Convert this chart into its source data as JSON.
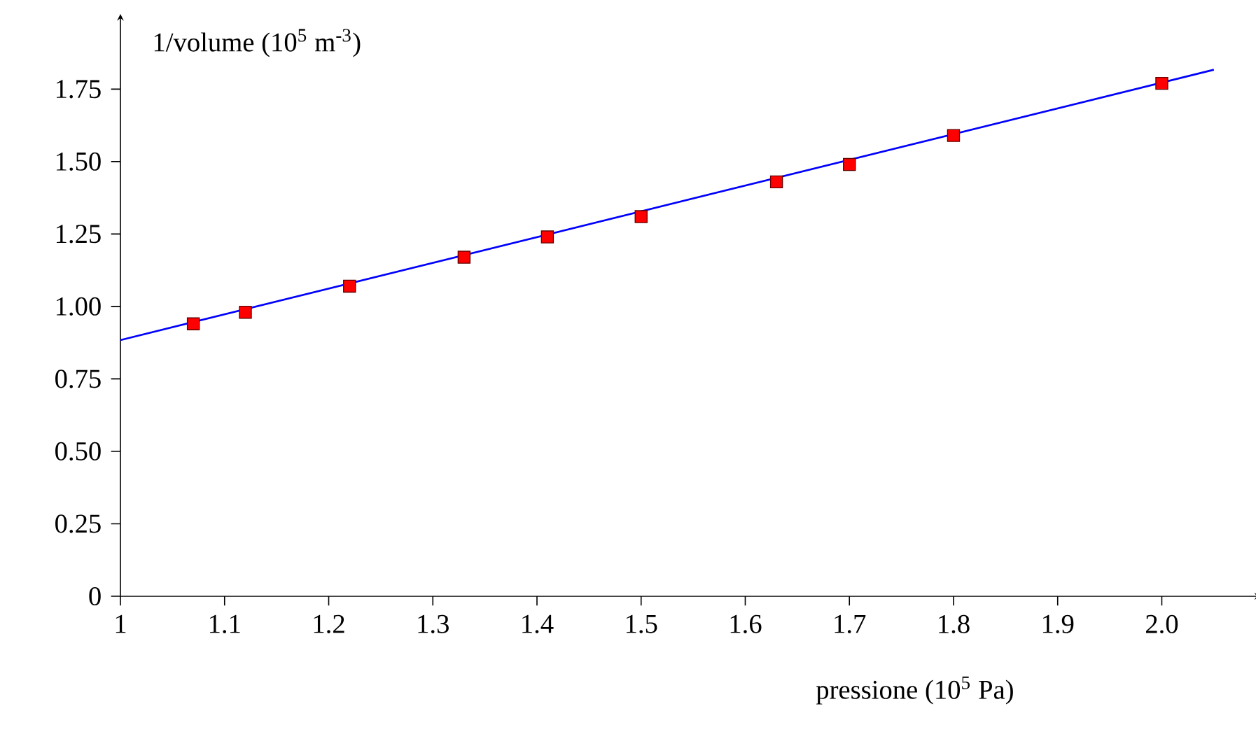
{
  "chart_data": {
    "type": "scatter",
    "xlabel": "pressione (10$^{5}$ Pa)",
    "ylabel": "1/volume (10$^{5}$ m$^{-3}$)",
    "xlim": [
      1,
      2.09
    ],
    "ylim": [
      0,
      1.99
    ],
    "xticks": [
      1,
      1.1,
      1.2,
      1.3,
      1.4,
      1.5,
      1.6,
      1.7,
      1.8,
      1.9,
      {
        "value": 2,
        "label": "2.0"
      }
    ],
    "yticks": [
      0,
      0.25,
      {
        "value": 0.5,
        "label": "0.50"
      },
      0.75,
      {
        "value": 1,
        "label": "1.00"
      },
      1.25,
      {
        "value": 1.5,
        "label": "1.50"
      },
      1.75
    ],
    "series": [
      {
        "color": "#ff0000",
        "marker": "square",
        "x": [
          1.07,
          1.12,
          1.22,
          1.33,
          1.41,
          1.5,
          1.63,
          1.7,
          1.8,
          2.0
        ],
        "values": [
          0.94,
          0.98,
          1.07,
          1.17,
          1.24,
          1.31,
          1.43,
          1.49,
          1.59,
          1.77
        ]
      },
      {
        "type": "line",
        "color": "#0000ff",
        "line_style": "solid",
        "x": [
          1,
          2.05
        ],
        "values": [
          0.884,
          1.817
        ]
      }
    ]
  }
}
